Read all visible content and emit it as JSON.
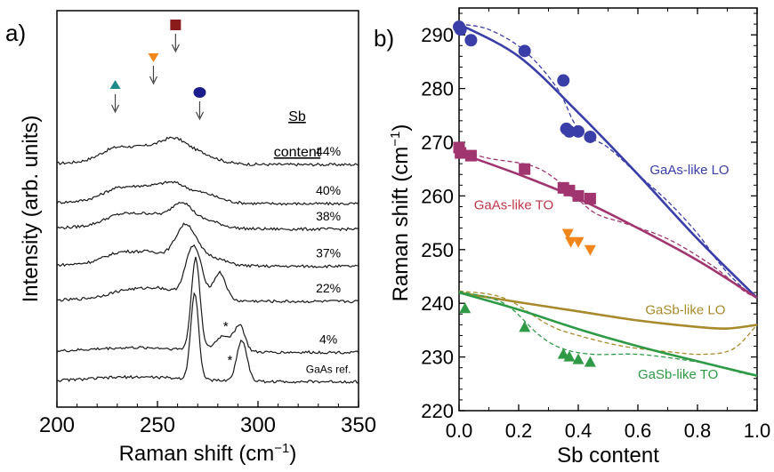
{
  "chart_data": [
    {
      "type": "line",
      "panel_label": "a)",
      "xlabel": "Raman shift (cm",
      "xlabel_sup": "−1",
      "xlabel_close": ")",
      "ylabel": "Intensity (arb. units)",
      "xlim": [
        200,
        350
      ],
      "xticks": [
        200,
        250,
        300,
        350
      ],
      "legend_title": [
        "Sb",
        "content"
      ],
      "series": [
        {
          "name": "44%",
          "offset": 6.2,
          "peaks": [
            [
              230,
              8,
              0.32
            ],
            [
              246,
              7,
              0.28
            ],
            [
              258,
              6,
              0.45
            ],
            [
              270,
              8,
              0.25
            ]
          ],
          "label_at": 335
        },
        {
          "name": "40%",
          "offset": 5.2,
          "peaks": [
            [
              231,
              8,
              0.28
            ],
            [
              246,
              7,
              0.26
            ],
            [
              258,
              6,
              0.35
            ],
            [
              272,
              8,
              0.22
            ]
          ],
          "label_at": 335
        },
        {
          "name": "38%",
          "offset": 4.55,
          "peaks": [
            [
              232,
              8,
              0.26
            ],
            [
              248,
              7,
              0.24
            ],
            [
              262,
              5,
              0.55
            ],
            [
              274,
              7,
              0.18
            ]
          ],
          "label_at": 335
        },
        {
          "name": "37%",
          "offset": 3.6,
          "peaks": [
            [
              232,
              8,
              0.24
            ],
            [
              248,
              7,
              0.22
            ],
            [
              264,
              5,
              0.95
            ],
            [
              276,
              7,
              0.2
            ]
          ],
          "label_at": 335
        },
        {
          "name": "22%",
          "offset": 2.7,
          "peaks": [
            [
              236,
              9,
              0.18
            ],
            [
              252,
              7,
              0.2
            ],
            [
              268,
              4,
              1.35
            ],
            [
              281,
              3,
              0.7
            ]
          ],
          "label_at": 335
        },
        {
          "name": "4%",
          "offset": 1.4,
          "peaks": [
            [
              269,
              2.2,
              2.35
            ],
            [
              283,
              4,
              0.4
            ],
            [
              291,
              2.5,
              0.65
            ]
          ],
          "label_at": 335
        },
        {
          "name": "GaAs ref.",
          "offset": 0.65,
          "peaks": [
            [
              268.5,
              2.0,
              2.2
            ],
            [
              292,
              2.5,
              1.05
            ]
          ],
          "label_at": 335
        }
      ],
      "markers": [
        {
          "shape": "triangle",
          "color": "#1f8a8a",
          "x": 229,
          "label": "▲"
        },
        {
          "shape": "triangle-down",
          "color": "#f0861c",
          "x": 248
        },
        {
          "shape": "square",
          "color": "#8b1a1a",
          "x": 259
        },
        {
          "shape": "circle",
          "color": "#1c1c8c",
          "x": 271
        }
      ],
      "star_marks": [
        {
          "x": 284,
          "series": "22%",
          "text": "*"
        },
        {
          "x": 286,
          "series": "4%",
          "text": "*"
        }
      ]
    },
    {
      "type": "scatter",
      "panel_label": "b)",
      "xlabel": "Sb content",
      "ylabel": "Raman shift (cm",
      "ylabel_sup": "−1",
      "ylabel_close": ")",
      "xlim": [
        0.0,
        1.0
      ],
      "ylim": [
        220,
        295
      ],
      "xticks": [
        0.0,
        0.2,
        0.4,
        0.6,
        0.8,
        1.0
      ],
      "yticks": [
        220,
        230,
        240,
        250,
        260,
        270,
        280,
        290
      ],
      "series": [
        {
          "name": "GaAs-like LO",
          "color": "#3a3ea8",
          "marker": "circle",
          "x": [
            0.0,
            0.005,
            0.04,
            0.22,
            0.35,
            0.36,
            0.37,
            0.4,
            0.44
          ],
          "y": [
            291.5,
            291,
            289,
            287,
            281.5,
            272.5,
            272,
            272,
            271
          ],
          "fit_solid": [
            [
              0.0,
              292
            ],
            [
              0.2,
              286
            ],
            [
              0.4,
              275.5
            ],
            [
              0.6,
              264
            ],
            [
              0.8,
              252
            ],
            [
              1.0,
              241
            ]
          ],
          "fit_dashed": [
            [
              0.0,
              292
            ],
            [
              0.1,
              291
            ],
            [
              0.22,
              287
            ],
            [
              0.33,
              280
            ],
            [
              0.4,
              272.5
            ],
            [
              0.5,
              269
            ],
            [
              0.6,
              264
            ],
            [
              0.7,
              259
            ],
            [
              0.8,
              253
            ],
            [
              0.88,
              247
            ],
            [
              0.95,
              243
            ],
            [
              1.0,
              241
            ]
          ]
        },
        {
          "name": "GaAs-like TO",
          "color": "#a0356f",
          "marker": "square",
          "x": [
            0.0,
            0.005,
            0.04,
            0.22,
            0.35,
            0.37,
            0.4,
            0.44
          ],
          "y": [
            269,
            268,
            267.5,
            265,
            261.5,
            261,
            260,
            259.5
          ],
          "fit_solid": [
            [
              0.0,
              268
            ],
            [
              0.2,
              264
            ],
            [
              0.4,
              259.5
            ],
            [
              0.6,
              254
            ],
            [
              0.8,
              248
            ],
            [
              1.0,
              241
            ]
          ],
          "fit_dashed": [
            [
              0.0,
              268.5
            ],
            [
              0.1,
              267
            ],
            [
              0.25,
              265.5
            ],
            [
              0.35,
              262
            ],
            [
              0.45,
              257
            ],
            [
              0.55,
              255
            ],
            [
              0.7,
              252
            ],
            [
              0.85,
              247
            ],
            [
              0.95,
              242.5
            ],
            [
              1.0,
              241
            ]
          ]
        },
        {
          "name": "",
          "color": "#f0861c",
          "marker": "triangle-down",
          "x": [
            0.365,
            0.375,
            0.4,
            0.44
          ],
          "y": [
            253,
            251.5,
            251.5,
            250
          ]
        },
        {
          "name": "GaSb-like LO",
          "color": "#a88a2c",
          "x": [],
          "y": [],
          "fit_solid": [
            [
              0.0,
              242
            ],
            [
              0.2,
              240.2
            ],
            [
              0.4,
              238.5
            ],
            [
              0.6,
              236.8
            ],
            [
              0.8,
              235.6
            ],
            [
              0.9,
              235.3
            ],
            [
              1.0,
              236
            ]
          ],
          "fit_dashed": [
            [
              0.0,
              242.3
            ],
            [
              0.15,
              241
            ],
            [
              0.3,
              236
            ],
            [
              0.4,
              234
            ],
            [
              0.55,
              232
            ],
            [
              0.7,
              231
            ],
            [
              0.82,
              230.5
            ],
            [
              0.92,
              231.5
            ],
            [
              1.0,
              236
            ]
          ]
        },
        {
          "name": "GaSb-like TO",
          "color": "#2e9a45",
          "marker": "triangle",
          "x": [
            0.02,
            0.22,
            0.35,
            0.37,
            0.4,
            0.44
          ],
          "y": [
            239,
            235.5,
            230.5,
            230,
            229.5,
            229
          ],
          "fit_solid": [
            [
              0.0,
              242
            ],
            [
              0.2,
              238.8
            ],
            [
              0.4,
              235.2
            ],
            [
              0.6,
              232
            ],
            [
              0.8,
              229.2
            ],
            [
              1.0,
              226.5
            ]
          ],
          "fit_dashed": [
            [
              0.0,
              242.2
            ],
            [
              0.15,
              240
            ],
            [
              0.27,
              234
            ],
            [
              0.35,
              231.5
            ],
            [
              0.45,
              230.5
            ],
            [
              0.6,
              230.5
            ],
            [
              0.75,
              229.5
            ],
            [
              0.85,
              228.5
            ],
            [
              0.95,
              227
            ],
            [
              1.0,
              226.5
            ]
          ]
        }
      ],
      "annotations": [
        {
          "text": "GaAs-like LO",
          "color": "#3a3ea8",
          "x": 0.64,
          "y": 264
        },
        {
          "text": "GaAs-like TO",
          "color": "#c0354a",
          "x": 0.05,
          "y": 257.5
        },
        {
          "text": "GaSb-like LO",
          "color": "#a88a2c",
          "x": 0.625,
          "y": 238
        },
        {
          "text": "GaSb-like TO",
          "color": "#2e9a45",
          "x": 0.6,
          "y": 226
        }
      ]
    }
  ]
}
